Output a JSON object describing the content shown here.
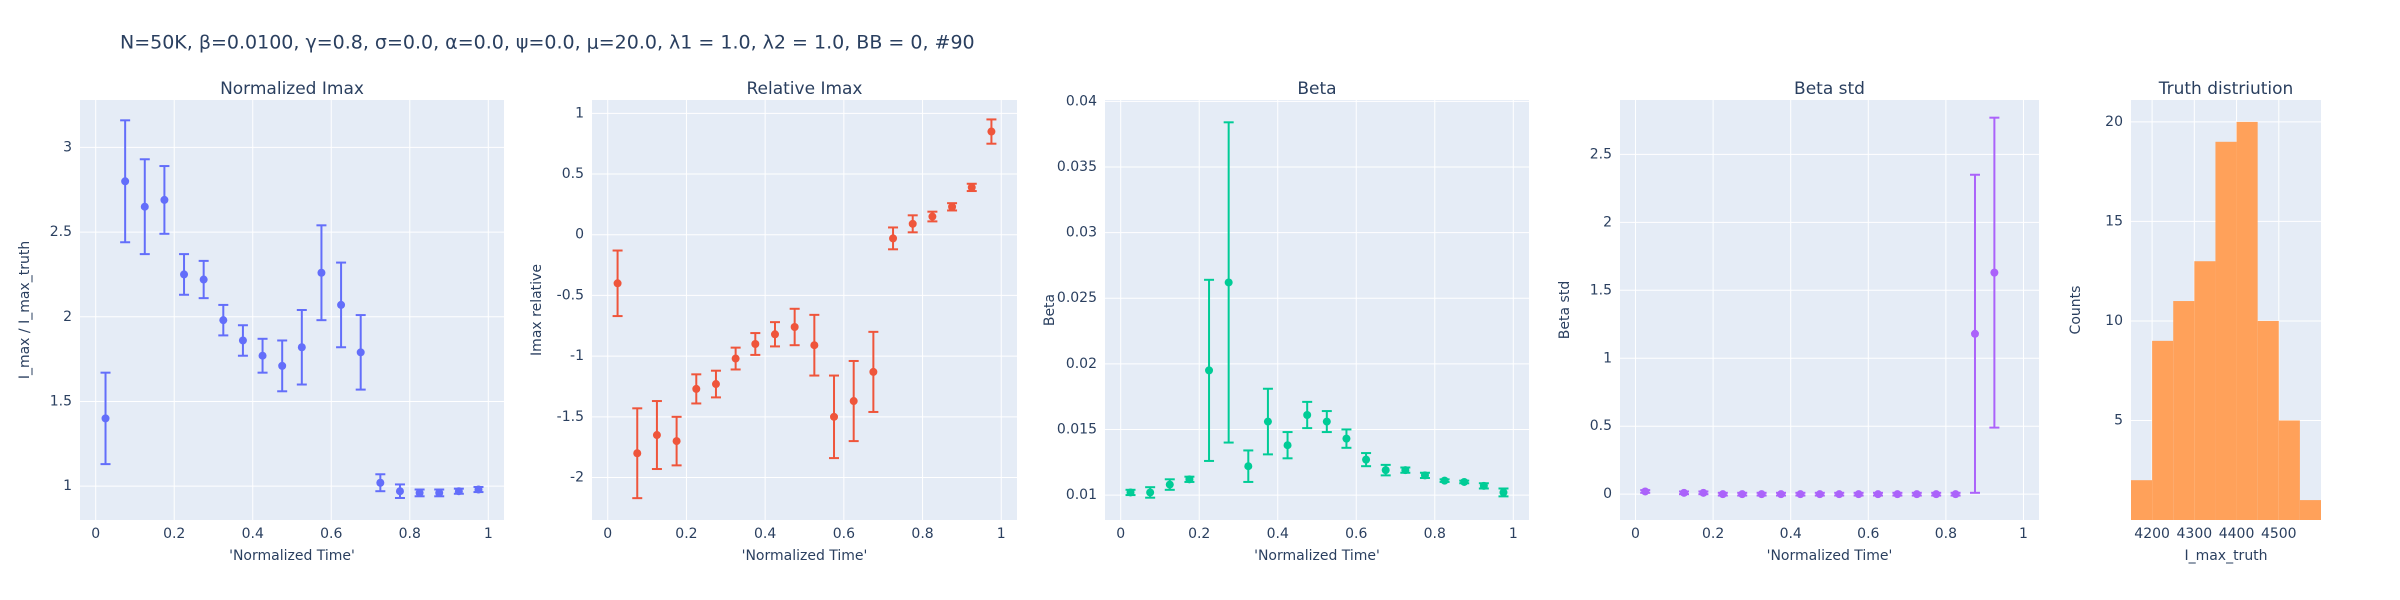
{
  "title": "N=50K, β=0.0100, γ=0.8, σ=0.0,  α=0.0, ψ=0.0, μ=20.0, λ1 = 1.0, λ2 = 1.0, BB = 0, #90",
  "chart_data": [
    {
      "type": "errorbar",
      "title": "Normalized Imax",
      "xlabel": "'Normalized Time'",
      "ylabel": "I_max / I_max_truth",
      "color": "#636efa",
      "x": [
        0.025,
        0.075,
        0.125,
        0.175,
        0.225,
        0.275,
        0.325,
        0.375,
        0.425,
        0.475,
        0.525,
        0.575,
        0.625,
        0.675,
        0.725,
        0.775,
        0.825,
        0.875,
        0.925,
        0.975
      ],
      "values": [
        1.4,
        2.8,
        2.65,
        2.69,
        2.25,
        2.22,
        1.98,
        1.86,
        1.77,
        1.71,
        1.82,
        2.26,
        2.07,
        1.79,
        1.02,
        0.97,
        0.96,
        0.96,
        0.97,
        0.98
      ],
      "errors": [
        0.27,
        0.36,
        0.28,
        0.2,
        0.12,
        0.11,
        0.09,
        0.09,
        0.1,
        0.15,
        0.22,
        0.28,
        0.25,
        0.22,
        0.05,
        0.04,
        0.02,
        0.02,
        0.015,
        0.015
      ],
      "xlim": [
        -0.04,
        1.04
      ],
      "ylim": [
        0.8,
        3.28
      ],
      "xticks": [
        0,
        0.2,
        0.4,
        0.6,
        0.8,
        1
      ],
      "yticks": [
        1,
        1.5,
        2,
        2.5,
        3
      ],
      "grid": true
    },
    {
      "type": "errorbar",
      "title": "Relative Imax",
      "xlabel": "'Normalized Time'",
      "ylabel": "Imax relative",
      "color": "#EF553B",
      "x": [
        0.025,
        0.075,
        0.125,
        0.175,
        0.225,
        0.275,
        0.325,
        0.375,
        0.425,
        0.475,
        0.525,
        0.575,
        0.625,
        0.675,
        0.725,
        0.775,
        0.825,
        0.875,
        0.925,
        0.975
      ],
      "values": [
        -0.4,
        -1.8,
        -1.65,
        -1.7,
        -1.27,
        -1.23,
        -1.02,
        -0.9,
        -0.82,
        -0.76,
        -0.91,
        -1.5,
        -1.37,
        -1.13,
        -0.03,
        0.09,
        0.15,
        0.23,
        0.39,
        0.85
      ],
      "errors": [
        0.27,
        0.37,
        0.28,
        0.2,
        0.12,
        0.11,
        0.09,
        0.09,
        0.1,
        0.15,
        0.25,
        0.34,
        0.33,
        0.33,
        0.09,
        0.07,
        0.04,
        0.03,
        0.03,
        0.1
      ],
      "xlim": [
        -0.04,
        1.04
      ],
      "ylim": [
        -2.35,
        1.11
      ],
      "xticks": [
        0,
        0.2,
        0.4,
        0.6,
        0.8,
        1
      ],
      "yticks": [
        -2,
        -1.5,
        -1,
        -0.5,
        0,
        0.5,
        1
      ],
      "grid": true
    },
    {
      "type": "errorbar",
      "title": "Beta",
      "xlabel": "'Normalized Time'",
      "ylabel": "Beta",
      "color": "#00cc96",
      "x": [
        0.025,
        0.075,
        0.125,
        0.175,
        0.225,
        0.275,
        0.325,
        0.375,
        0.425,
        0.475,
        0.525,
        0.575,
        0.625,
        0.675,
        0.725,
        0.775,
        0.825,
        0.875,
        0.925,
        0.975
      ],
      "values": [
        0.0102,
        0.0102,
        0.0108,
        0.0112,
        0.0195,
        0.0262,
        0.0122,
        0.0156,
        0.0138,
        0.0161,
        0.0156,
        0.0143,
        0.0127,
        0.0119,
        0.0119,
        0.0115,
        0.0111,
        0.011,
        0.0107,
        0.0102
      ],
      "errors": [
        0.0002,
        0.0004,
        0.0004,
        0.0002,
        0.0069,
        0.0122,
        0.0012,
        0.0025,
        0.001,
        0.001,
        0.0008,
        0.0007,
        0.0005,
        0.0004,
        0.0002,
        0.0002,
        0.0001,
        0.0001,
        0.0002,
        0.0003
      ],
      "xlim": [
        -0.04,
        1.04
      ],
      "ylim": [
        0.0081,
        0.0401
      ],
      "xticks": [
        0,
        0.2,
        0.4,
        0.6,
        0.8,
        1
      ],
      "yticks": [
        0.01,
        0.015,
        0.02,
        0.025,
        0.03,
        0.035,
        0.04
      ],
      "grid": true
    },
    {
      "type": "errorbar",
      "title": "Beta std",
      "xlabel": "'Normalized Time'",
      "ylabel": "Beta std",
      "color": "#ab63fa",
      "x": [
        0.025,
        0.125,
        0.175,
        0.225,
        0.275,
        0.325,
        0.375,
        0.425,
        0.475,
        0.525,
        0.575,
        0.625,
        0.675,
        0.725,
        0.775,
        0.825,
        0.875,
        0.925
      ],
      "values": [
        0.02,
        0.01,
        0.01,
        0,
        0,
        0,
        0,
        0,
        0,
        0,
        0,
        0,
        0,
        0,
        0,
        0,
        1.18,
        1.63
      ],
      "errors": [
        0.01,
        0.01,
        0.01,
        0.01,
        0.01,
        0.01,
        0.01,
        0.01,
        0.01,
        0.01,
        0.01,
        0.01,
        0.01,
        0.01,
        0.01,
        0.01,
        1.17,
        1.14
      ],
      "xlim": [
        -0.04,
        1.04
      ],
      "ylim": [
        -0.19,
        2.9
      ],
      "xticks": [
        0,
        0.2,
        0.4,
        0.6,
        0.8,
        1
      ],
      "yticks": [
        0,
        0.5,
        1,
        1.5,
        2,
        2.5
      ],
      "grid": true
    },
    {
      "type": "histogram",
      "title": "Truth distriution",
      "xlabel": "I_max_truth",
      "ylabel": "Counts",
      "color": "#FFA15A",
      "bins": [
        4150,
        4200,
        4250,
        4300,
        4350,
        4400,
        4450,
        4500,
        4550,
        4600
      ],
      "values": [
        2,
        9,
        11,
        13,
        19,
        20,
        10,
        5,
        1
      ],
      "xlim": [
        4150,
        4600
      ],
      "ylim": [
        0,
        21.1
      ],
      "xticks": [
        4200,
        4300,
        4400,
        4500
      ],
      "yticks": [
        5,
        10,
        15,
        20
      ],
      "grid": true
    }
  ]
}
